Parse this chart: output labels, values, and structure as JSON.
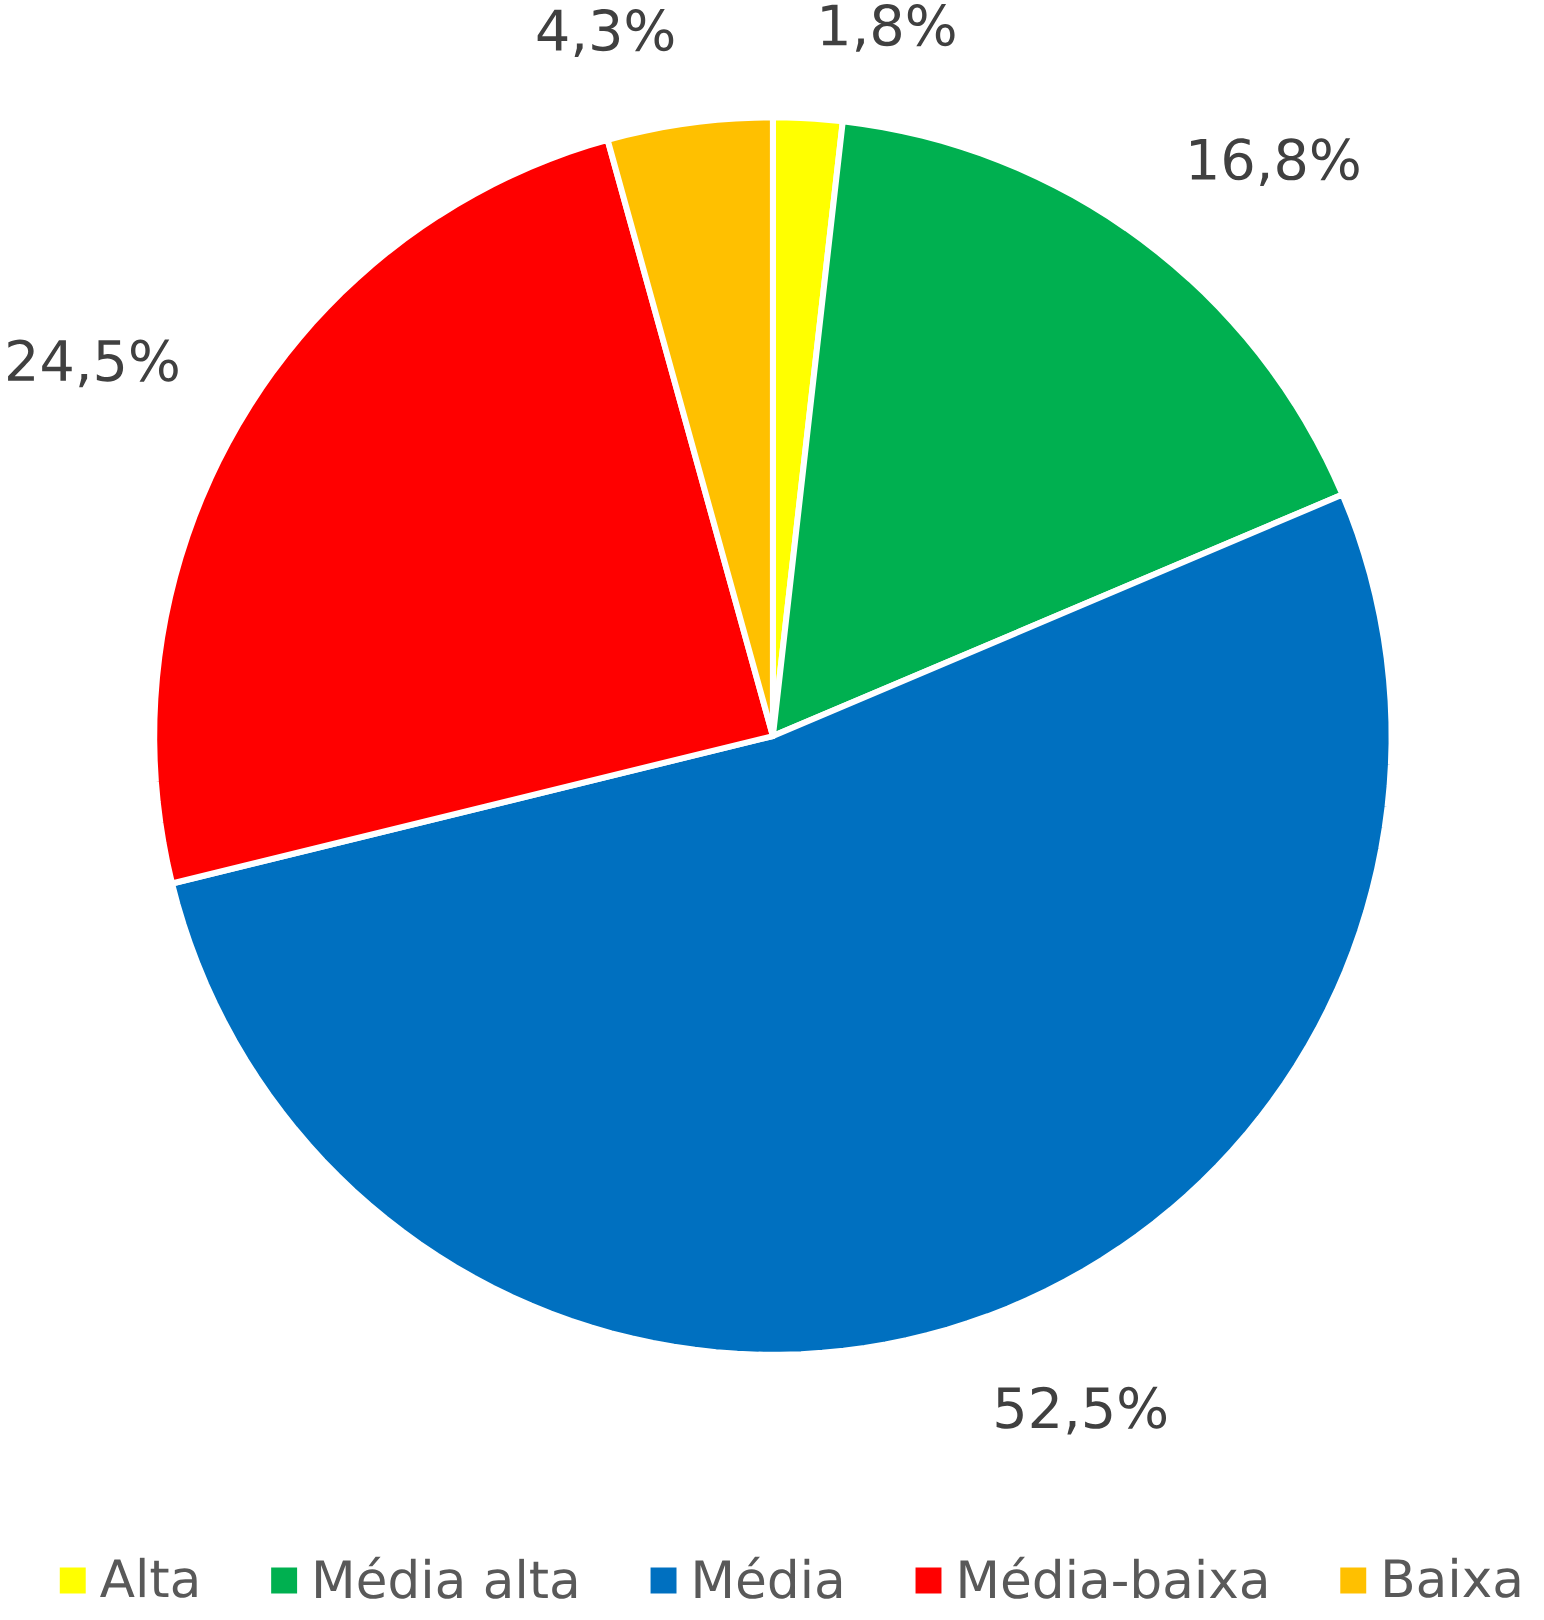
{
  "chart_data": {
    "type": "pie",
    "categories": [
      "Alta",
      "Média alta",
      "Média",
      "Média-baixa",
      "Baixa"
    ],
    "values": [
      1.8,
      16.8,
      52.5,
      24.5,
      4.3
    ],
    "colors": [
      "#ffff00",
      "#00b050",
      "#0070c0",
      "#ff0000",
      "#ffc000"
    ],
    "value_labels": [
      "1,8%",
      "16,8%",
      "52,5%",
      "24,5%",
      "4,3%"
    ],
    "legend": "bottom"
  }
}
